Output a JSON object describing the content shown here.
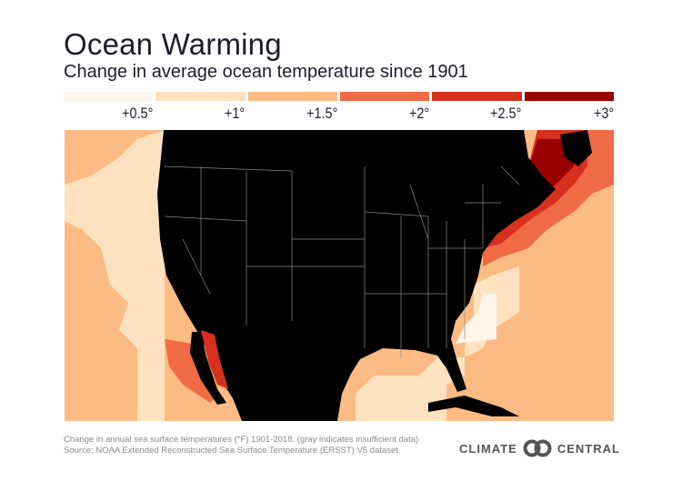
{
  "header": {
    "title": "Ocean Warming",
    "subtitle": "Change in average ocean temperature since 1901"
  },
  "legend": [
    {
      "label": "+0.5°",
      "color": "#fff5e8"
    },
    {
      "label": "+1°",
      "color": "#fee2c0"
    },
    {
      "label": "+1.5°",
      "color": "#fdbb84"
    },
    {
      "label": "+2°",
      "color": "#f06a45"
    },
    {
      "label": "+2.5°",
      "color": "#d7301f"
    },
    {
      "label": "+3°",
      "color": "#990000"
    }
  ],
  "map": {
    "land_color": "#000000",
    "border_color": "#888888",
    "insufficient_data_color": "#bbbbbb"
  },
  "footer": {
    "note": "Change in annual sea surface temperatures (°F) 1901-2018. (gray indicates insufficient data)",
    "source": "Source: NOAA Extended Reconstructed Sea Surface Temperature (ERSST) V5 dataset"
  },
  "logo": {
    "left": "CLIMATE",
    "right": "CENTRAL"
  }
}
